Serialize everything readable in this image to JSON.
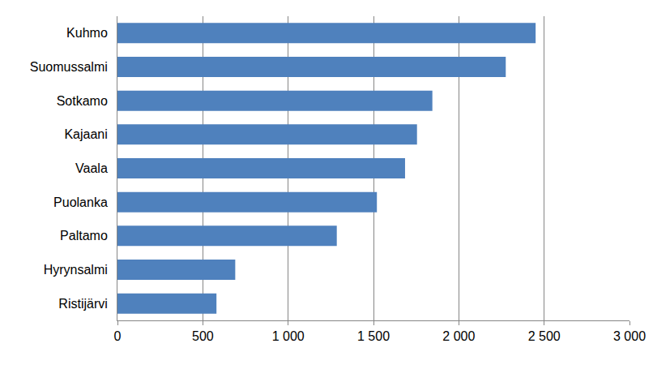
{
  "chart_data": {
    "type": "bar",
    "orientation": "horizontal",
    "categories": [
      "Kuhmo",
      "Suomussalmi",
      "Sotkamo",
      "Kajaani",
      "Vaala",
      "Puolanka",
      "Paltamo",
      "Hyrynsalmi",
      "Ristijärvi"
    ],
    "values": [
      2450,
      2275,
      1845,
      1755,
      1685,
      1520,
      1285,
      690,
      580
    ],
    "color": "#4f81bd",
    "xlim": [
      0,
      3000
    ],
    "xticks": [
      0,
      500,
      {
        "value": 1000,
        "label": "1 000"
      },
      {
        "value": 1500,
        "label": "1 500"
      },
      {
        "value": 2000,
        "label": "2 000"
      },
      {
        "value": 2500,
        "label": "2 500"
      },
      {
        "value": 3000,
        "label": "3 000"
      }
    ],
    "grid": true
  }
}
